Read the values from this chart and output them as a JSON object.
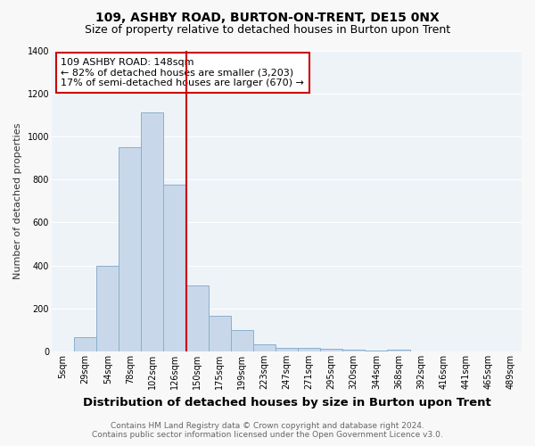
{
  "title": "109, ASHBY ROAD, BURTON-ON-TRENT, DE15 0NX",
  "subtitle": "Size of property relative to detached houses in Burton upon Trent",
  "xlabel": "Distribution of detached houses by size in Burton upon Trent",
  "ylabel": "Number of detached properties",
  "footer_line1": "Contains HM Land Registry data © Crown copyright and database right 2024.",
  "footer_line2": "Contains public sector information licensed under the Open Government Licence v3.0.",
  "annotation_line1": "109 ASHBY ROAD: 148sqm",
  "annotation_line2": "← 82% of detached houses are smaller (3,203)",
  "annotation_line3": "17% of semi-detached houses are larger (670) →",
  "bar_labels": [
    "5sqm",
    "29sqm",
    "54sqm",
    "78sqm",
    "102sqm",
    "126sqm",
    "150sqm",
    "175sqm",
    "199sqm",
    "223sqm",
    "247sqm",
    "271sqm",
    "295sqm",
    "320sqm",
    "344sqm",
    "368sqm",
    "392sqm",
    "416sqm",
    "441sqm",
    "465sqm",
    "489sqm"
  ],
  "bar_values": [
    0,
    65,
    400,
    950,
    1110,
    775,
    305,
    165,
    100,
    35,
    15,
    15,
    12,
    8,
    5,
    10,
    0,
    0,
    0,
    0,
    0
  ],
  "bar_color": "#c8d8ea",
  "bar_edge_color": "#8ab0cc",
  "vline_index": 6,
  "vline_color": "#cc0000",
  "annotation_box_color": "#ffffff",
  "annotation_box_edge_color": "#cc0000",
  "ylim": [
    0,
    1400
  ],
  "yticks": [
    0,
    200,
    400,
    600,
    800,
    1000,
    1200,
    1400
  ],
  "bg_color": "#f8f8f8",
  "plot_bg_color": "#eef3f8",
  "grid_color": "#ffffff",
  "title_fontsize": 10,
  "subtitle_fontsize": 9,
  "xlabel_fontsize": 9.5,
  "ylabel_fontsize": 8,
  "tick_fontsize": 7,
  "footer_fontsize": 6.5,
  "annotation_fontsize": 8
}
